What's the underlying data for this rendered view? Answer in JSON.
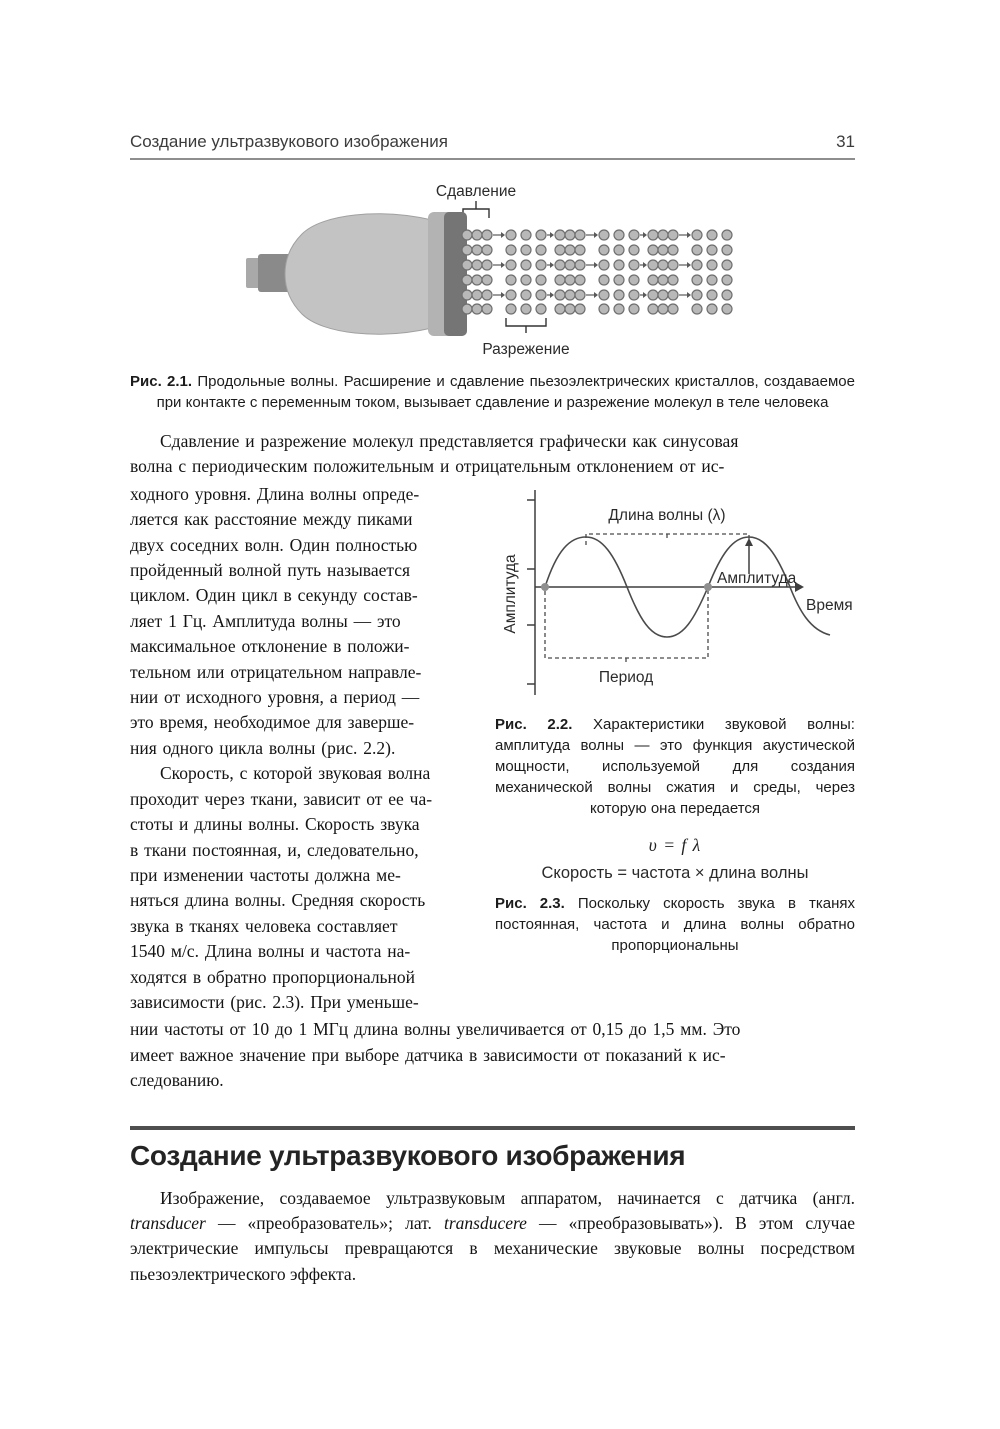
{
  "header": {
    "title": "Создание ультразвукового изображения",
    "page_number": "31"
  },
  "figure1": {
    "label_top": "Сдавление",
    "label_bottom": "Разрежение",
    "caption_bold": "Рис. 2.1.",
    "caption_text": " Продольные волны. Расширение и сдавление пьезоэлектрических кристаллов, создаваемое при контакте с переменным током, вызывает сдавление и разрежение молекул в теле человека"
  },
  "figure2": {
    "ylabel": "Амплитуда",
    "xlabel": "Время",
    "wavelength_label": "Длина волны (λ)",
    "amplitude_label": "Амплитуда",
    "period_label": "Период",
    "caption_bold": "Рис. 2.2.",
    "caption_text": " Характеристики звуковой волны: амплитуда волны — это функция акустической мощности, используемой для создания механической волны сжатия и среды, через которую она передается"
  },
  "figure3": {
    "formula": "υ = f λ",
    "formula_text": "Скорость = частота × длина волны",
    "caption_bold": "Рис. 2.3.",
    "caption_text": " Поскольку скорость звука в тканях постоянная, частота и длина волны обратно пропорциональны"
  },
  "paragraphs": {
    "p1": "Сдавление и разрежение молекул представляется графически как синусовая\nволна с периодическим положительным и отрицательным отклонением от ис-",
    "left_col_1": "ходного уровня. Длина волны опреде-\nляется как расстояние между пиками\nдвух соседних волн. Один полностью\nпройденный волной путь называется\nциклом. Один цикл в секунду состав-\nляет 1 Гц. Амплитуда волны — это\nмаксимальное отклонение в положи-\nтельном или отрицательном направле-\nнии от исходного уровня, а период —\nэто время, необходимое для заверше-\nния одного цикла волны (рис. 2.2).",
    "left_col_2": "Скорость, с которой звуковая волна\nпроходит через ткани, зависит от ее ча-\nстоты и длины волны. Скорость звука\nв ткани постоянная, и, следовательно,\nпри изменении частоты должна ме-\nняться длина волны. Средняя скорость\nзвука в тканях человека составляет\n1540 м/с. Длина волны и частота на-\nходятся в обратно пропорциональной\nзависимости (рис. 2.3). При уменьше-",
    "p2": "нии частоты от 10 до 1 МГц длина волны увеличивается от 0,15 до 1,5 мм. Это\nимеет важное значение при выборе датчика в зависимости от показаний к ис-\nследованию."
  },
  "section": {
    "heading": "Создание ультразвукового изображения",
    "para_parts": [
      "Изображение, создаваемое ультразвуковым аппаратом, начинается с датчика (англ. ",
      "transducer",
      " — «преобразователь»; лат. ",
      "transducere",
      " — «преобразовывать»). В этом случае электрические импульсы превращаются в механические звуковые волны посредством пьезоэлектрического эффекта."
    ]
  },
  "colors": {
    "rule_light": "#8e8e8e",
    "rule_dark": "#4f4f4f",
    "probe_body": "#c3c3c3",
    "probe_plate": "#757575",
    "molecule_fill": "#b8b8b8",
    "molecule_stroke": "#6f6f6f"
  }
}
